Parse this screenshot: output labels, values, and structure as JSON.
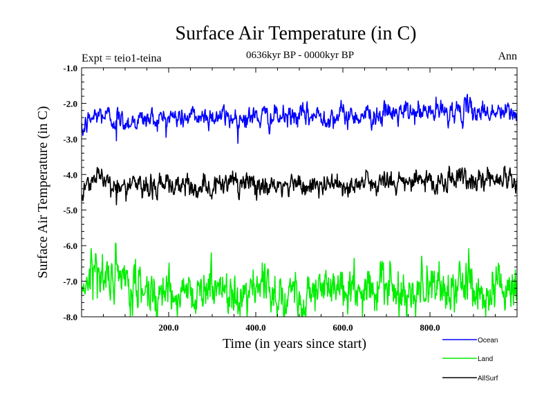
{
  "chart_data": {
    "type": "line",
    "title": "Surface Air Temperature (in C)",
    "subtitle": "0636kyr BP - 0000kyr BP",
    "expt_label": "Expt = teio1-teina",
    "season_label": "Ann",
    "xlabel": "Time (in years since start)",
    "ylabel": "Surface Air Temperature (in C)",
    "xlim": [
      0,
      1000
    ],
    "ylim": [
      -8.0,
      -1.0
    ],
    "x_ticks": [
      200,
      400,
      600,
      800
    ],
    "x_tick_labels": [
      "200.0",
      "400.0",
      "600.0",
      "800.0"
    ],
    "y_ticks": [
      -8,
      -7,
      -6,
      -5,
      -4,
      -3,
      -2,
      -1
    ],
    "y_tick_labels": [
      "-8.0",
      "-7.0",
      "-6.0",
      "-5.0",
      "-4.0",
      "-3.0",
      "-2.0",
      "-1.0"
    ],
    "legend_position": "bottom-right",
    "series": [
      {
        "name": "Ocean",
        "color": "#0000ff",
        "profile_x": [
          0,
          10,
          25,
          45,
          80,
          100,
          150,
          200,
          250,
          300,
          350,
          400,
          450,
          500,
          550,
          600,
          650,
          700,
          750,
          800,
          850,
          900,
          950,
          1000
        ],
        "profile_y": [
          -2.9,
          -2.6,
          -2.4,
          -2.3,
          -2.45,
          -2.5,
          -2.45,
          -2.4,
          -2.4,
          -2.35,
          -2.4,
          -2.38,
          -2.4,
          -2.38,
          -2.35,
          -2.35,
          -2.32,
          -2.3,
          -2.28,
          -2.25,
          -2.22,
          -2.2,
          -2.25,
          -2.3
        ],
        "noise": 0.13,
        "min_excursion": [
          80,
          -3.05
        ]
      },
      {
        "name": "Land",
        "color": "#00ee00",
        "profile_x": [
          0,
          10,
          25,
          45,
          80,
          100,
          150,
          200,
          250,
          300,
          350,
          400,
          450,
          500,
          550,
          600,
          650,
          700,
          750,
          800,
          850,
          900,
          950,
          1000
        ],
        "profile_y": [
          -7.2,
          -6.9,
          -6.6,
          -6.8,
          -7.0,
          -7.2,
          -7.25,
          -7.25,
          -7.3,
          -7.2,
          -7.25,
          -7.25,
          -7.3,
          -7.3,
          -7.25,
          -7.25,
          -7.2,
          -7.25,
          -7.2,
          -7.15,
          -7.15,
          -7.15,
          -7.2,
          -7.2
        ],
        "noise": 0.28,
        "min_excursion": [
          645,
          -8.0
        ]
      },
      {
        "name": "AllSurf",
        "color": "#000000",
        "profile_x": [
          0,
          10,
          25,
          45,
          80,
          100,
          150,
          200,
          250,
          300,
          350,
          400,
          450,
          500,
          550,
          600,
          650,
          700,
          750,
          800,
          850,
          900,
          950,
          1000
        ],
        "profile_y": [
          -4.5,
          -4.3,
          -4.05,
          -4.1,
          -4.3,
          -4.35,
          -4.35,
          -4.3,
          -4.35,
          -4.3,
          -4.3,
          -4.3,
          -4.35,
          -4.32,
          -4.3,
          -4.3,
          -4.25,
          -4.25,
          -4.2,
          -4.18,
          -4.15,
          -4.12,
          -4.15,
          -4.2
        ],
        "noise": 0.14,
        "min_excursion": [
          80,
          -4.85
        ]
      }
    ]
  }
}
